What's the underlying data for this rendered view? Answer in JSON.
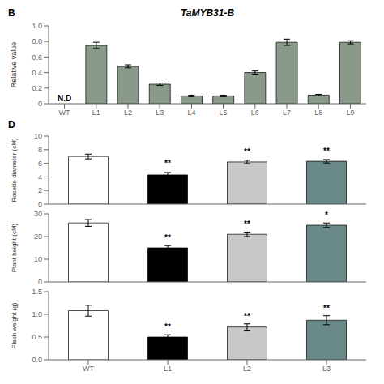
{
  "chart_data": [
    {
      "type": "bar",
      "title": "TaMYB31-B",
      "categories": [
        "WT",
        "L1",
        "L2",
        "L3",
        "L4",
        "L5",
        "L6",
        "L7",
        "L8",
        "L9"
      ],
      "values": [
        0.0,
        0.75,
        0.48,
        0.25,
        0.1,
        0.1,
        0.4,
        0.79,
        0.11,
        0.79
      ],
      "errors": [
        0.0,
        0.04,
        0.02,
        0.015,
        0.01,
        0.01,
        0.02,
        0.04,
        0.01,
        0.02
      ],
      "color": "#8a9a8a",
      "ylabel": "Relative value",
      "ylim": [
        0,
        1.0
      ],
      "yticks": [
        0,
        0.2,
        0.4,
        0.6,
        0.8,
        {
          "value": 1.0,
          "label": "1.0"
        }
      ],
      "annotations": [
        {
          "text": "B"
        },
        {
          "text": "N.D",
          "category": "WT",
          "y": 0.01
        }
      ]
    },
    {
      "type": "bar",
      "categories": [
        "WT",
        "L1",
        "L2",
        "L3"
      ],
      "values": [
        7.0,
        4.3,
        6.2,
        6.3
      ],
      "errors": [
        0.35,
        0.35,
        0.25,
        0.25
      ],
      "colors": [
        "white",
        "black",
        "#c8c8c8",
        "#6a8a8a"
      ],
      "ylabel": "Rosette diameter (cM)",
      "ylim": [
        0,
        10
      ],
      "yticks": [
        0,
        2,
        4,
        6,
        8,
        10
      ],
      "tick_labels": "y",
      "annotations": [
        {
          "text": "D"
        },
        {
          "text": "**",
          "category": "L1",
          "y": 5.3
        },
        {
          "text": "**",
          "category": "L2",
          "y": 7.0
        },
        {
          "text": "**",
          "category": "L3",
          "y": 7.1
        }
      ]
    },
    {
      "type": "bar",
      "categories": [
        "WT",
        "L1",
        "L2",
        "L3"
      ],
      "values": [
        26.0,
        15.0,
        21.0,
        25.0
      ],
      "errors": [
        1.5,
        1.0,
        1.0,
        1.0
      ],
      "colors": [
        "white",
        "black",
        "#c8c8c8",
        "#6a8a8a"
      ],
      "ylabel": "Plant height (cM)",
      "ylim": [
        0,
        30
      ],
      "yticks": [
        0,
        10,
        20,
        30
      ],
      "tick_labels": "y",
      "annotations": [
        {
          "text": "**",
          "category": "L1",
          "y": 17.5
        },
        {
          "text": "**",
          "category": "L2",
          "y": 23.5
        },
        {
          "text": "*",
          "category": "L3",
          "y": 27.5
        }
      ]
    },
    {
      "type": "bar",
      "categories": [
        "WT",
        "L1",
        "L2",
        "L3"
      ],
      "values": [
        1.08,
        0.5,
        0.72,
        0.87
      ],
      "errors": [
        0.12,
        0.05,
        0.07,
        0.1
      ],
      "colors": [
        "white",
        "black",
        "#c8c8c8",
        "#6a8a8a"
      ],
      "ylabel": "Flesh weight (g)",
      "ylim": [
        0.0,
        1.5
      ],
      "yticks": [
        {
          "value": 0.0,
          "label": "0.0"
        },
        0.5,
        {
          "value": 1.0,
          "label": "1.0"
        },
        1.5
      ],
      "annotations": [
        {
          "text": "**",
          "category": "L1",
          "y": 0.62
        },
        {
          "text": "**",
          "category": "L2",
          "y": 0.85
        },
        {
          "text": "**",
          "category": "L3",
          "y": 1.03
        }
      ]
    }
  ]
}
